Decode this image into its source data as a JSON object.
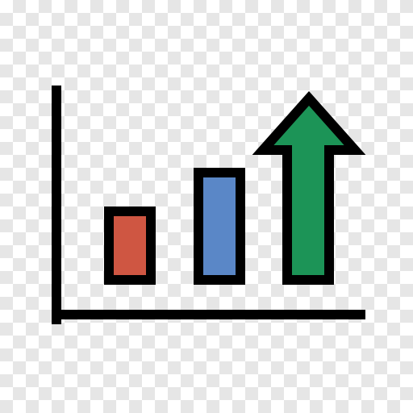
{
  "icon": {
    "name": "bar-chart-growth-icon",
    "colors": {
      "outline": "#000000",
      "bar_small": "#cf5642",
      "bar_medium": "#5a87c7",
      "arrow": "#1c9457",
      "background_light": "#ffffff",
      "background_dark": "#e6e6e6"
    }
  }
}
